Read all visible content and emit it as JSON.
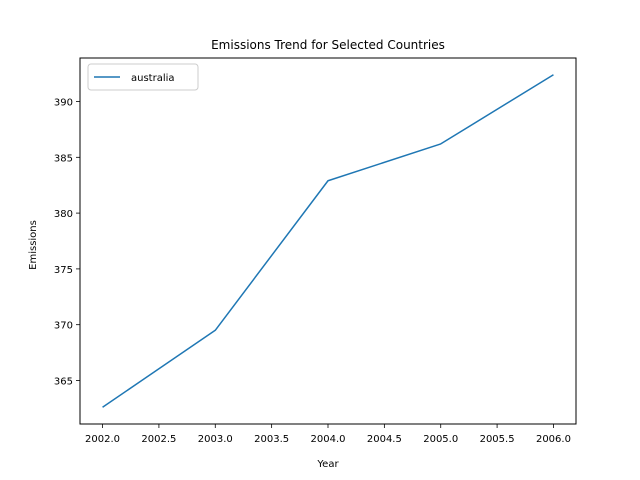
{
  "chart_data": {
    "type": "line",
    "title": "Emissions Trend for Selected Countries",
    "xlabel": "Year",
    "ylabel": "Emissions",
    "x": [
      2002,
      2003,
      2004,
      2005,
      2006
    ],
    "series": [
      {
        "name": "australia",
        "color": "#1f77b4",
        "values": [
          362.6,
          369.5,
          382.9,
          386.2,
          392.4
        ]
      }
    ],
    "xlim": [
      2001.8,
      2006.2
    ],
    "ylim": [
      361.1,
      393.9
    ],
    "xticks": [
      "2002.0",
      "2002.5",
      "2003.0",
      "2003.5",
      "2004.0",
      "2004.5",
      "2005.0",
      "2005.5",
      "2006.0"
    ],
    "xtick_values": [
      2002.0,
      2002.5,
      2003.0,
      2003.5,
      2004.0,
      2004.5,
      2005.0,
      2005.5,
      2006.0
    ],
    "yticks": [
      "365",
      "370",
      "375",
      "380",
      "385",
      "390"
    ],
    "ytick_values": [
      365,
      370,
      375,
      380,
      385,
      390
    ],
    "grid": false,
    "legend_position": "top-left"
  }
}
